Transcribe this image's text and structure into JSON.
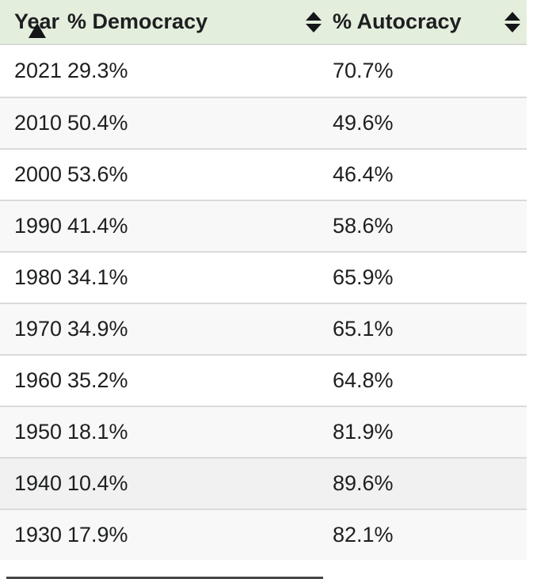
{
  "table": {
    "header": {
      "year": {
        "label": "Year",
        "sort_state": "ascending"
      },
      "democracy": {
        "label": "% Democracy",
        "sort_state": "none"
      },
      "autocracy": {
        "label": "% Autocracy",
        "sort_state": "none"
      }
    },
    "rows": [
      {
        "year": "2021",
        "democracy": "29.3%",
        "autocracy": "70.7%"
      },
      {
        "year": "2010",
        "democracy": "50.4%",
        "autocracy": "49.6%"
      },
      {
        "year": "2000",
        "democracy": "53.6%",
        "autocracy": "46.4%"
      },
      {
        "year": "1990",
        "democracy": "41.4%",
        "autocracy": "58.6%"
      },
      {
        "year": "1980",
        "democracy": "34.1%",
        "autocracy": "65.9%"
      },
      {
        "year": "1970",
        "democracy": "34.9%",
        "autocracy": "65.1%"
      },
      {
        "year": "1960",
        "democracy": "35.2%",
        "autocracy": "64.8%"
      },
      {
        "year": "1950",
        "democracy": "18.1%",
        "autocracy": "81.9%"
      },
      {
        "year": "1940",
        "democracy": "10.4%",
        "autocracy": "89.6%",
        "state": "hovered"
      },
      {
        "year": "1930",
        "democracy": "17.9%",
        "autocracy": "82.1%"
      }
    ]
  },
  "icons": {
    "year_header": "sort-ascending-icon",
    "democracy_header": "sort-both-icon",
    "autocracy_header": "sort-both-icon"
  },
  "colors": {
    "header_background": "#e4eedd",
    "row_background": "#ffffff",
    "row_stripe": "#f8f8f8",
    "row_hover": "#f1f1f1",
    "row_border": "#dadada",
    "text": "#1d1f20"
  }
}
